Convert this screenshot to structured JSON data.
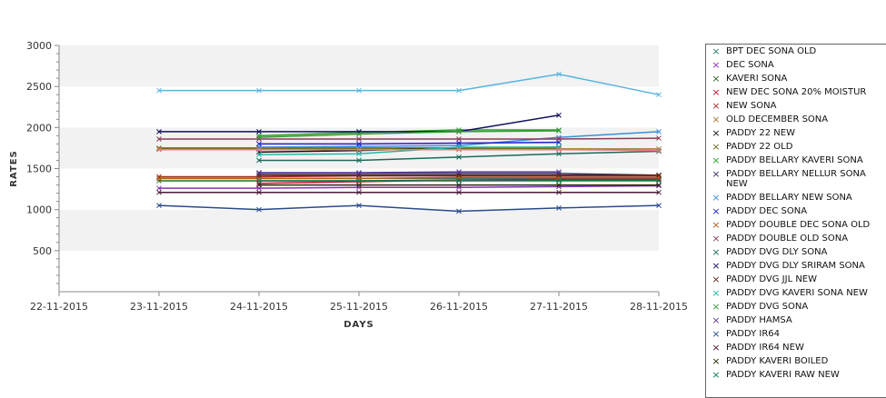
{
  "chart_data": {
    "type": "line",
    "title": "",
    "xlabel": "DAYS",
    "ylabel": "RATES",
    "x_ticks": [
      "22-11-2015",
      "23-11-2015",
      "24-11-2015",
      "25-11-2015",
      "26-11-2015",
      "27-11-2015",
      "28-11-2015"
    ],
    "ylim": [
      0,
      3000
    ],
    "y_ticks": [
      "500",
      "1000",
      "1500",
      "2000",
      "2500",
      "3000"
    ],
    "grid": "alternating horizontal bands",
    "legend_position": "right",
    "series": [
      {
        "name": "BPT DEC SONA OLD",
        "color": "#2a7d6d",
        "points": [
          [
            1,
            1380
          ],
          [
            2,
            1380
          ],
          [
            3,
            1380
          ],
          [
            4,
            1380
          ],
          [
            5,
            1380
          ],
          [
            6,
            1380
          ]
        ]
      },
      {
        "name": "DEC SONA",
        "color": "#8b2fb8",
        "points": [
          [
            1,
            1260
          ],
          [
            2,
            1260
          ],
          [
            3,
            1270
          ],
          [
            4,
            1270
          ],
          [
            5,
            1280
          ],
          [
            6,
            1290
          ]
        ]
      },
      {
        "name": "KAVERI SONA",
        "color": "#2f6b1f",
        "points": [
          [
            1,
            1350
          ],
          [
            2,
            1350
          ],
          [
            3,
            1350
          ],
          [
            4,
            1360
          ],
          [
            5,
            1360
          ],
          [
            6,
            1360
          ]
        ]
      },
      {
        "name": "NEW DEC SONA 20% MOISTUR",
        "color": "#c8102e",
        "points": [
          [
            2,
            1320
          ],
          [
            3,
            1340
          ],
          [
            4,
            1360
          ],
          [
            5,
            1370
          ],
          [
            6,
            1370
          ]
        ]
      },
      {
        "name": "NEW SONA",
        "color": "#a52a2a",
        "points": [
          [
            1,
            1400
          ],
          [
            2,
            1400
          ],
          [
            3,
            1410
          ],
          [
            4,
            1410
          ],
          [
            5,
            1410
          ],
          [
            6,
            1410
          ]
        ]
      },
      {
        "name": "OLD DECEMBER SONA",
        "color": "#a0782a",
        "points": [
          [
            1,
            1740
          ],
          [
            2,
            1740
          ],
          [
            3,
            1740
          ],
          [
            4,
            1740
          ],
          [
            5,
            1740
          ],
          [
            6,
            1740
          ]
        ]
      },
      {
        "name": "PADDY 22 NEW",
        "color": "#111111",
        "points": [
          [
            2,
            1700
          ],
          [
            3,
            1720
          ],
          [
            4,
            1750
          ],
          [
            5,
            1760
          ]
        ]
      },
      {
        "name": "PADDY 22 OLD",
        "color": "#6b6b1a",
        "points": [
          [
            1,
            1750
          ],
          [
            2,
            1750
          ],
          [
            3,
            1750
          ],
          [
            4,
            1750
          ],
          [
            5,
            1750
          ]
        ]
      },
      {
        "name": "PADDY BELLARY KAVERI SONA",
        "color": "#2ca02c",
        "points": [
          [
            2,
            1900
          ],
          [
            3,
            1940
          ],
          [
            4,
            1970
          ],
          [
            5,
            1970
          ]
        ]
      },
      {
        "name": "PADDY BELLARY NELLUR SONA\n NEW",
        "color": "#333366",
        "points": [
          [
            2,
            1440
          ],
          [
            3,
            1440
          ],
          [
            4,
            1440
          ],
          [
            5,
            1440
          ],
          [
            6,
            1420
          ]
        ]
      },
      {
        "name": "PADDY BELLARY NEW SONA",
        "color": "#3a8fd8",
        "points": [
          [
            2,
            1760
          ],
          [
            3,
            1770
          ],
          [
            4,
            1780
          ],
          [
            5,
            1880
          ],
          [
            6,
            1950
          ]
        ]
      },
      {
        "name": "PADDY DEC SONA",
        "color": "#1f1fcf",
        "points": [
          [
            2,
            1800
          ],
          [
            3,
            1800
          ],
          [
            4,
            1810
          ],
          [
            5,
            1820
          ]
        ]
      },
      {
        "name": "PADDY DOUBLE DEC SONA OLD",
        "color": "#b35a1a",
        "points": [
          [
            1,
            1380
          ],
          [
            2,
            1380
          ],
          [
            3,
            1380
          ],
          [
            4,
            1390
          ],
          [
            5,
            1390
          ],
          [
            6,
            1390
          ]
        ]
      },
      {
        "name": "PADDY DOUBLE OLD SONA",
        "color": "#8a3a5a",
        "points": [
          [
            1,
            1860
          ],
          [
            2,
            1860
          ],
          [
            3,
            1860
          ],
          [
            4,
            1860
          ],
          [
            5,
            1860
          ],
          [
            6,
            1870
          ]
        ]
      },
      {
        "name": "PADDY DVG DLY SONA",
        "color": "#1a6a5a",
        "points": [
          [
            2,
            1600
          ],
          [
            3,
            1600
          ],
          [
            4,
            1640
          ],
          [
            5,
            1680
          ],
          [
            6,
            1710
          ]
        ]
      },
      {
        "name": "PADDY DVG DLY SRIRAM SONA",
        "color": "#10105a",
        "points": [
          [
            1,
            1950
          ],
          [
            2,
            1950
          ],
          [
            3,
            1950
          ],
          [
            4,
            1950
          ],
          [
            5,
            2150
          ]
        ]
      },
      {
        "name": "PADDY DVG JJL NEW",
        "color": "#5a2a1a",
        "points": [
          [
            2,
            1420
          ],
          [
            3,
            1420
          ],
          [
            4,
            1420
          ],
          [
            5,
            1420
          ],
          [
            6,
            1420
          ]
        ]
      },
      {
        "name": "PADDY DVG KAVERI SONA NEW",
        "color": "#20b8a8",
        "points": [
          [
            2,
            1670
          ],
          [
            3,
            1680
          ],
          [
            4,
            1760
          ],
          [
            5,
            1760
          ]
        ]
      },
      {
        "name": "PADDY DVG SONA",
        "color": "#3a9a3a",
        "points": [
          [
            2,
            1880
          ],
          [
            3,
            1920
          ],
          [
            4,
            1950
          ],
          [
            5,
            1960
          ]
        ]
      },
      {
        "name": "PADDY HAMSA",
        "color": "#5a3aa0",
        "points": [
          [
            2,
            1450
          ],
          [
            3,
            1450
          ],
          [
            4,
            1460
          ],
          [
            5,
            1460
          ]
        ]
      },
      {
        "name": "PADDY IR64",
        "color": "#2a4a8a",
        "points": [
          [
            1,
            1050
          ],
          [
            2,
            1000
          ],
          [
            3,
            1050
          ],
          [
            4,
            980
          ],
          [
            5,
            1020
          ],
          [
            6,
            1050
          ]
        ]
      },
      {
        "name": "PADDY IR64 NEW",
        "color": "#4a1a3a",
        "points": [
          [
            1,
            1210
          ],
          [
            2,
            1210
          ],
          [
            3,
            1210
          ],
          [
            4,
            1210
          ],
          [
            5,
            1210
          ],
          [
            6,
            1210
          ]
        ]
      },
      {
        "name": "PADDY KAVERI BOILED",
        "color": "#2a2a0a",
        "points": [
          [
            2,
            1300
          ],
          [
            3,
            1300
          ],
          [
            4,
            1300
          ],
          [
            5,
            1300
          ],
          [
            6,
            1300
          ]
        ]
      },
      {
        "name": "PADDY KAVERI RAW NEW",
        "color": "#0f7a5a",
        "points": [
          [
            2,
            1350
          ],
          [
            3,
            1350
          ],
          [
            4,
            1350
          ],
          [
            5,
            1350
          ],
          [
            6,
            1350
          ]
        ]
      },
      {
        "name": "",
        "color": "#5ab4e0",
        "points": [
          [
            1,
            2450
          ],
          [
            2,
            2450
          ],
          [
            3,
            2450
          ],
          [
            4,
            2450
          ],
          [
            5,
            2650
          ],
          [
            6,
            2400
          ]
        ]
      },
      {
        "name": "",
        "color": "#e08080",
        "points": [
          [
            1,
            1730
          ],
          [
            2,
            1730
          ],
          [
            3,
            1730
          ],
          [
            4,
            1730
          ],
          [
            5,
            1730
          ],
          [
            6,
            1720
          ]
        ]
      }
    ]
  }
}
